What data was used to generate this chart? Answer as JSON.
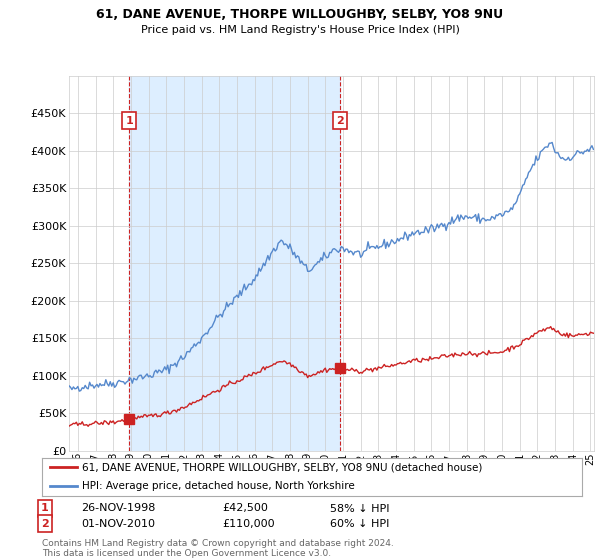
{
  "title": "61, DANE AVENUE, THORPE WILLOUGHBY, SELBY, YO8 9NU",
  "subtitle": "Price paid vs. HM Land Registry's House Price Index (HPI)",
  "legend_line1": "61, DANE AVENUE, THORPE WILLOUGHBY, SELBY, YO8 9NU (detached house)",
  "legend_line2": "HPI: Average price, detached house, North Yorkshire",
  "footnote": "Contains HM Land Registry data © Crown copyright and database right 2024.\nThis data is licensed under the Open Government Licence v3.0.",
  "hpi_color": "#5588cc",
  "sale_color": "#cc2222",
  "shade_color": "#ddeeff",
  "ylim": [
    0,
    500000
  ],
  "yticks": [
    0,
    50000,
    100000,
    150000,
    200000,
    250000,
    300000,
    350000,
    400000,
    450000
  ],
  "xlim_start": 1995.5,
  "xlim_end": 2025.2,
  "background_color": "#ffffff",
  "grid_color": "#cccccc",
  "sale1_year": 1998.9,
  "sale1_value": 42500,
  "sale2_year": 2010.83,
  "sale2_value": 110000,
  "annotation_1": {
    "label": "1",
    "date": "26-NOV-1998",
    "price": "£42,500",
    "pct": "58% ↓ HPI"
  },
  "annotation_2": {
    "label": "2",
    "date": "01-NOV-2010",
    "price": "£110,000",
    "pct": "60% ↓ HPI"
  }
}
